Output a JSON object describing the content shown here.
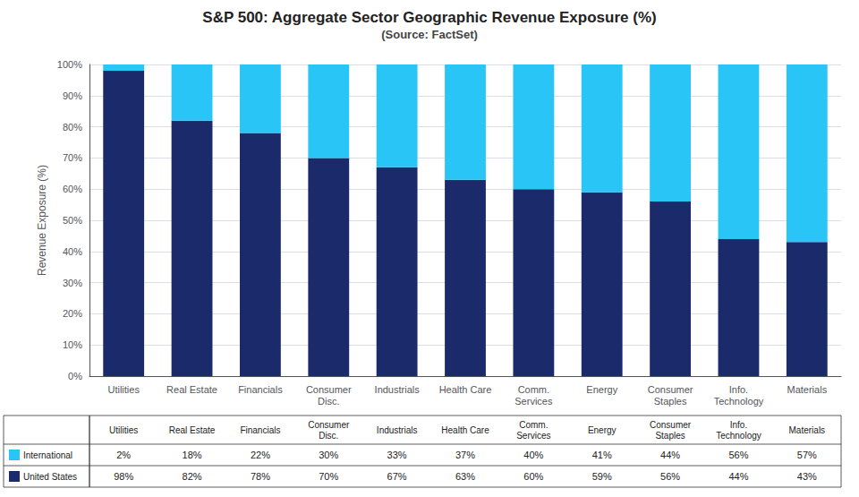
{
  "chart_data": {
    "type": "bar",
    "title": "S&P 500: Aggregate Sector Geographic Revenue Exposure (%)",
    "subtitle": "(Source: FactSet)",
    "ylabel": "Revenue Exposure (%)",
    "categories": [
      "Utilities",
      "Real Estate",
      "Financials",
      "Consumer\nDisc.",
      "Industrials",
      "Health Care",
      "Comm.\nServices",
      "Energy",
      "Consumer\nStaples",
      "Info.\nTechnology",
      "Materials"
    ],
    "series": [
      {
        "name": "United States",
        "color": "#1B2A6B",
        "values": [
          98,
          82,
          78,
          70,
          67,
          63,
          60,
          59,
          56,
          44,
          43
        ],
        "value_labels": [
          "98%",
          "82%",
          "78%",
          "70%",
          "67%",
          "63%",
          "60%",
          "59%",
          "56%",
          "44%",
          "43%"
        ]
      },
      {
        "name": "International",
        "color": "#29C5F6",
        "values": [
          2,
          18,
          22,
          30,
          33,
          37,
          40,
          41,
          44,
          56,
          57
        ],
        "value_labels": [
          "2%",
          "18%",
          "22%",
          "30%",
          "33%",
          "37%",
          "40%",
          "41%",
          "44%",
          "56%",
          "57%"
        ]
      }
    ],
    "stacked": true,
    "ylim": [
      0,
      100
    ],
    "yticks": [
      {
        "value": 0,
        "label": "0%"
      },
      {
        "value": 10,
        "label": "10%"
      },
      {
        "value": 20,
        "label": "20%"
      },
      {
        "value": 30,
        "label": "30%"
      },
      {
        "value": 40,
        "label": "40%"
      },
      {
        "value": 50,
        "label": "50%"
      },
      {
        "value": 60,
        "label": "60%"
      },
      {
        "value": 70,
        "label": "70%"
      },
      {
        "value": 80,
        "label": "80%"
      },
      {
        "value": 90,
        "label": "90%"
      },
      {
        "value": 100,
        "label": "100%"
      }
    ],
    "grid": true,
    "legend": "lower left"
  }
}
